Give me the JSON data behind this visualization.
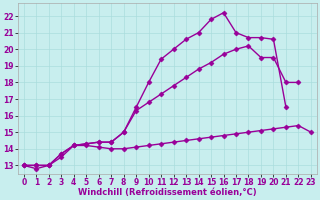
{
  "xlabel": "Windchill (Refroidissement éolien,°C)",
  "bg_color": "#c8eeee",
  "line_color": "#990099",
  "grid_color": "#aadddd",
  "xlim": [
    -0.5,
    23.5
  ],
  "ylim": [
    12.5,
    22.8
  ],
  "xticks": [
    0,
    1,
    2,
    3,
    4,
    5,
    6,
    7,
    8,
    9,
    10,
    11,
    12,
    13,
    14,
    15,
    16,
    17,
    18,
    19,
    20,
    21,
    22,
    23
  ],
  "yticks": [
    13,
    14,
    15,
    16,
    17,
    18,
    19,
    20,
    21,
    22
  ],
  "series1_x": [
    0,
    1,
    2,
    3,
    4,
    5,
    6,
    7,
    8,
    9,
    10,
    11,
    12,
    13,
    14,
    15,
    16,
    17,
    18,
    19,
    20,
    21,
    22,
    23
  ],
  "series1_y": [
    13.0,
    12.8,
    13.0,
    13.5,
    14.2,
    14.2,
    14.1,
    14.0,
    14.0,
    14.1,
    14.2,
    14.3,
    14.4,
    14.5,
    14.6,
    14.7,
    14.8,
    14.9,
    15.0,
    15.1,
    15.2,
    15.3,
    15.4,
    15.0
  ],
  "series2_x": [
    0,
    1,
    2,
    3,
    4,
    5,
    6,
    7,
    8,
    9,
    10,
    11,
    12,
    13,
    14,
    15,
    16,
    17,
    18,
    19,
    20,
    21,
    22
  ],
  "series2_y": [
    13.0,
    13.0,
    13.0,
    13.7,
    14.2,
    14.3,
    14.4,
    14.4,
    15.0,
    16.3,
    16.8,
    17.3,
    17.8,
    18.3,
    18.8,
    19.2,
    19.7,
    20.0,
    20.2,
    19.5,
    19.5,
    18.0,
    18.0
  ],
  "series3_x": [
    0,
    1,
    2,
    3,
    4,
    5,
    6,
    7,
    8,
    9,
    10,
    11,
    12,
    13,
    14,
    15,
    16,
    17,
    18,
    19,
    20,
    21,
    22
  ],
  "series3_y": [
    13.0,
    13.0,
    13.0,
    13.7,
    14.2,
    14.3,
    14.4,
    14.4,
    15.0,
    16.5,
    18.0,
    19.4,
    20.0,
    20.6,
    21.0,
    21.8,
    22.2,
    21.0,
    20.7,
    20.7,
    20.6,
    16.5,
    null
  ],
  "marker": "D",
  "markersize": 2.5,
  "linewidth": 1.0,
  "tick_fontsize": 5.5,
  "xlabel_fontsize": 6.0
}
